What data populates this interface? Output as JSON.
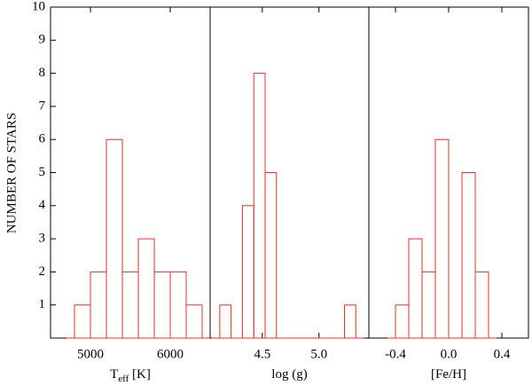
{
  "chart_data": [
    {
      "type": "histogram",
      "xlabel_parts": [
        "T",
        "eff",
        " [K]"
      ],
      "ylabel": "NUMBER OF STARS",
      "bins": [
        4800,
        5000,
        5200,
        5400,
        5600,
        5800,
        6000,
        6200,
        6400
      ],
      "values": [
        1,
        2,
        6,
        2,
        3,
        2,
        2,
        1
      ],
      "color": "#e8302a",
      "xlim": [
        4500,
        6500
      ],
      "xticks": [
        5000,
        6000
      ],
      "ylim": [
        0,
        10
      ],
      "yticks": [
        1,
        2,
        3,
        4,
        5,
        6,
        7,
        8,
        9,
        10
      ]
    },
    {
      "type": "histogram",
      "xlabel_parts": [
        "log (g)"
      ],
      "bins": [
        4.125,
        4.225,
        4.325,
        4.425,
        4.525,
        4.625,
        4.725,
        4.825,
        4.925,
        5.025,
        5.125,
        5.225,
        5.325
      ],
      "values": [
        1,
        0,
        4,
        8,
        5,
        0,
        0,
        0,
        0,
        0,
        0,
        1
      ],
      "color": "#e8302a",
      "xlim": [
        4.04,
        5.44
      ],
      "xticks": [
        4.5,
        {
          "value": 5,
          "label": "5.0"
        }
      ],
      "ylim": [
        0,
        10
      ]
    },
    {
      "type": "histogram",
      "xlabel_parts": [
        "[Fe/H]"
      ],
      "bins": [
        -0.4,
        -0.3,
        -0.2,
        -0.1,
        0,
        0.1,
        0.2,
        0.3
      ],
      "values": [
        1,
        3,
        2,
        6,
        0,
        5,
        2
      ],
      "color": "#e8302a",
      "xlim": [
        -0.6,
        0.6
      ],
      "xticks": [
        -0.4,
        {
          "value": 0,
          "label": "0.0"
        },
        0.4
      ],
      "ylim": [
        0,
        10
      ]
    }
  ]
}
